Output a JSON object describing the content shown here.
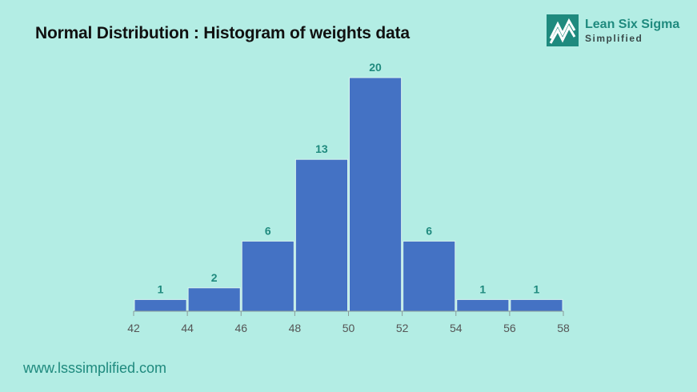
{
  "title": "Normal Distribution : Histogram of weights data",
  "logo": {
    "line1": "Lean Six Sigma",
    "line2": "Simplified"
  },
  "footer_url": "www.lsssimplified.com",
  "colors": {
    "background": "#b3ede4",
    "bar_fill": "#4472c4",
    "bar_stroke": "#d9f3ee",
    "data_label": "#1f8a7e",
    "axis": "#8a9a98",
    "tick_label": "#555555",
    "brand": "#1f8a7e"
  },
  "chart_data": {
    "type": "bar",
    "bins": [
      {
        "from": 42,
        "to": 44,
        "count": 1
      },
      {
        "from": 44,
        "to": 46,
        "count": 2
      },
      {
        "from": 46,
        "to": 48,
        "count": 6
      },
      {
        "from": 48,
        "to": 50,
        "count": 13
      },
      {
        "from": 50,
        "to": 52,
        "count": 20
      },
      {
        "from": 52,
        "to": 54,
        "count": 6
      },
      {
        "from": 54,
        "to": 56,
        "count": 1
      },
      {
        "from": 56,
        "to": 58,
        "count": 1
      }
    ],
    "x_ticks": [
      42,
      44,
      46,
      48,
      50,
      52,
      54,
      56,
      58
    ],
    "xlim": [
      42,
      58
    ],
    "ylim": [
      0,
      20
    ],
    "grid": false,
    "legend": "none",
    "data_labels": true
  }
}
